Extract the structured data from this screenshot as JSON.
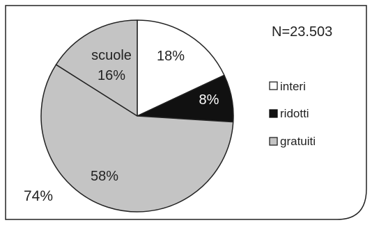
{
  "chart_data": {
    "type": "pie",
    "annotation": "N=23.503",
    "overall_label": "74%",
    "slices": [
      {
        "name": "interi",
        "value": 18,
        "label": "18%",
        "color": "#ffffff"
      },
      {
        "name": "ridotti",
        "value": 8,
        "label": "8%",
        "color": "#111111",
        "label_color": "#ffffff"
      },
      {
        "name": "gratuiti",
        "value": 58,
        "label": "58%",
        "color": "#c4c4c4"
      },
      {
        "name": "gratuiti",
        "value": 16,
        "label": "16%",
        "prefix": "scuole",
        "color": "#c4c4c4"
      }
    ],
    "legend": [
      {
        "label": "interi",
        "color": "#ffffff"
      },
      {
        "label": "ridotti",
        "color": "#111111"
      },
      {
        "label": "gratuiti",
        "color": "#c4c4c4"
      }
    ],
    "legend_position": "right",
    "frame_color": "#222222"
  }
}
